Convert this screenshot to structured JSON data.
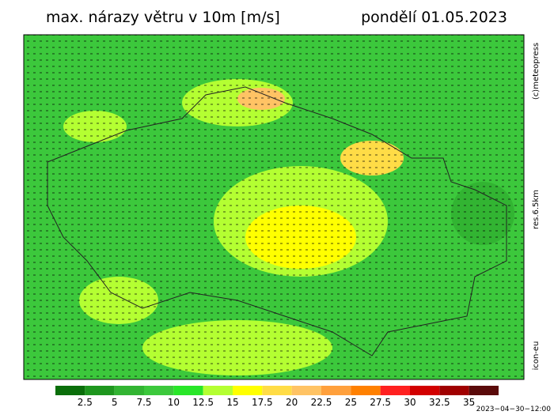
{
  "header": {
    "title": "max. nárazy větru v 10m [m/s]",
    "date": "pondělí 01.05.2023"
  },
  "side": {
    "copyright": "(c)meteopress",
    "resolution": "res.6.5km",
    "model": "icon-eu"
  },
  "footer": {
    "timestamp": "2023−04−30−12:00"
  },
  "legend": {
    "colors": [
      "#0a6e0a",
      "#1e961e",
      "#32b432",
      "#3cc83c",
      "#28e628",
      "#b4ff32",
      "#ffff00",
      "#ffdc46",
      "#ffc364",
      "#ffa03c",
      "#ff8000",
      "#ff2020",
      "#d20000",
      "#a00000",
      "#5a0a0a"
    ],
    "labels": [
      "2.5",
      "5",
      "7.5",
      "10",
      "12.5",
      "15",
      "17.5",
      "20",
      "22.5",
      "25",
      "27.5",
      "30",
      "32.5",
      "35"
    ]
  }
}
